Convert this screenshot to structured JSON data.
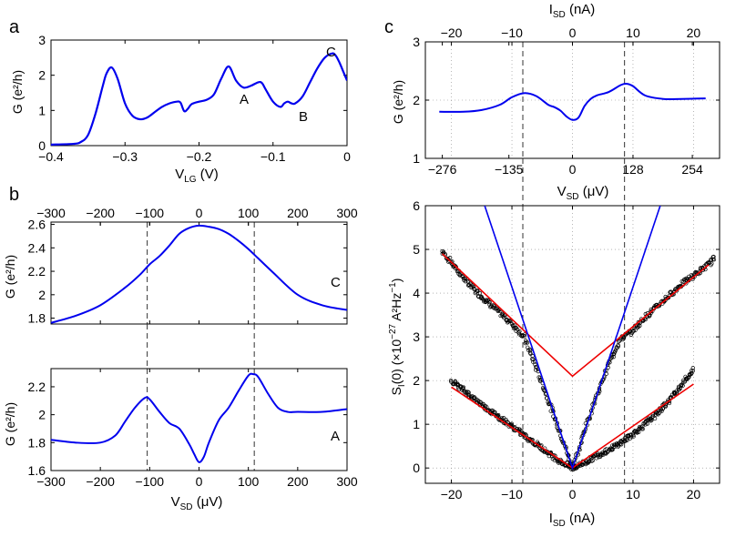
{
  "figure": {
    "panel_labels": {
      "a": "a",
      "b": "b",
      "c": "c"
    },
    "annotations_a": {
      "A": "A",
      "B": "B",
      "C": "C"
    },
    "annotation_b_top": "C",
    "annotation_b_bottom": "A",
    "ylabel_G": "G (e²/h)",
    "xlabel_VLG": "V",
    "xlabel_VLG_sub": "LG",
    "xlabel_VLG_unit": " (V)",
    "xlabel_VSD": "V",
    "xlabel_VSD_sub": "SD",
    "xlabel_VSD_unit": " (μV)",
    "xlabel_ISD": "I",
    "xlabel_ISD_sub": "SD",
    "xlabel_ISD_unit": " (nA)",
    "ylabel_S": "S",
    "ylabel_S_sub": "I",
    "ylabel_S_rest": "(0) (×10",
    "ylabel_S_exp": "−27",
    "ylabel_S_unit": " A²Hz",
    "ylabel_S_unitexp": "−1",
    "ylabel_S_close": ")",
    "colors": {
      "curve": "#0000ee",
      "fit": "#ee0000",
      "data": "#000000"
    }
  },
  "chart_data": [
    {
      "id": "a",
      "type": "line",
      "xlim": [
        -0.4,
        0
      ],
      "ylim": [
        0,
        3
      ],
      "xticks": [
        -0.4,
        -0.3,
        -0.2,
        -0.1,
        0
      ],
      "xtick_labels": [
        "−0.4",
        "−0.3",
        "−0.2",
        "−0.1",
        "0"
      ],
      "yticks": [
        0,
        1,
        2,
        3
      ],
      "ytick_labels": [
        "0",
        "1",
        "2",
        "3"
      ],
      "series": [
        {
          "x": [
            -0.4,
            -0.37,
            -0.36,
            -0.35,
            -0.34,
            -0.33,
            -0.325,
            -0.318,
            -0.31,
            -0.3,
            -0.29,
            -0.28,
            -0.27,
            -0.26,
            -0.25,
            -0.24,
            -0.23,
            -0.225,
            -0.22,
            -0.215,
            -0.21,
            -0.2,
            -0.19,
            -0.18,
            -0.17,
            -0.16,
            -0.15,
            -0.14,
            -0.13,
            -0.12,
            -0.115,
            -0.11,
            -0.1,
            -0.09,
            -0.085,
            -0.08,
            -0.075,
            -0.07,
            -0.06,
            -0.05,
            -0.04,
            -0.03,
            -0.02,
            -0.015,
            -0.01,
            -0.005,
            0
          ],
          "y": [
            0.03,
            0.05,
            0.1,
            0.3,
            0.9,
            1.7,
            2.05,
            2.22,
            1.9,
            1.2,
            0.85,
            0.75,
            0.8,
            0.95,
            1.1,
            1.2,
            1.25,
            1.22,
            0.98,
            1.05,
            1.18,
            1.25,
            1.3,
            1.45,
            1.9,
            2.25,
            1.85,
            1.65,
            1.7,
            1.8,
            1.78,
            1.6,
            1.25,
            1.1,
            1.2,
            1.25,
            1.2,
            1.2,
            1.4,
            1.8,
            2.2,
            2.5,
            2.62,
            2.55,
            2.35,
            2.1,
            1.85
          ]
        }
      ]
    },
    {
      "id": "b-top",
      "type": "line",
      "xlim": [
        -300,
        300
      ],
      "ylim": [
        1.75,
        2.62
      ],
      "xticks": [
        -300,
        -200,
        -100,
        0,
        100,
        200,
        300
      ],
      "xtick_labels": [
        "−300",
        "−200",
        "−100",
        "0",
        "100",
        "200",
        "300"
      ],
      "yticks": [
        1.8,
        2.0,
        2.2,
        2.4,
        2.6
      ],
      "ytick_labels": [
        "1.8",
        "2",
        "2.2",
        "2.4",
        "2.6"
      ],
      "vlines": [
        -105,
        112
      ],
      "series": [
        {
          "x": [
            -300,
            -250,
            -200,
            -150,
            -120,
            -100,
            -80,
            -60,
            -40,
            -20,
            0,
            20,
            40,
            60,
            80,
            100,
            120,
            150,
            200,
            250,
            300
          ],
          "y": [
            1.76,
            1.82,
            1.91,
            2.06,
            2.17,
            2.26,
            2.33,
            2.42,
            2.52,
            2.57,
            2.59,
            2.58,
            2.56,
            2.52,
            2.46,
            2.39,
            2.31,
            2.19,
            2.0,
            1.91,
            1.87
          ]
        }
      ]
    },
    {
      "id": "b-bottom",
      "type": "line",
      "xlim": [
        -300,
        300
      ],
      "ylim": [
        1.6,
        2.33
      ],
      "xticks": [
        -300,
        -200,
        -100,
        0,
        100,
        200,
        300
      ],
      "xtick_labels": [
        "−300",
        "−200",
        "−100",
        "0",
        "100",
        "200",
        "300"
      ],
      "yticks": [
        1.6,
        1.8,
        2.0,
        2.2
      ],
      "ytick_labels": [
        "1.6",
        "1.8",
        "2",
        "2.2"
      ],
      "vlines": [
        -105,
        112
      ],
      "series": [
        {
          "x": [
            -300,
            -250,
            -200,
            -170,
            -150,
            -130,
            -110,
            -100,
            -80,
            -60,
            -40,
            -20,
            -10,
            0,
            10,
            20,
            40,
            60,
            80,
            100,
            110,
            120,
            140,
            160,
            180,
            200,
            250,
            300
          ],
          "y": [
            1.82,
            1.8,
            1.8,
            1.85,
            1.95,
            2.05,
            2.12,
            2.11,
            2.02,
            1.94,
            1.9,
            1.79,
            1.72,
            1.66,
            1.7,
            1.8,
            1.96,
            2.05,
            2.17,
            2.28,
            2.29,
            2.27,
            2.15,
            2.05,
            2.02,
            2.02,
            2.02,
            2.04
          ]
        }
      ]
    },
    {
      "id": "c-top",
      "type": "line",
      "xlim": [
        -24.3,
        24.3
      ],
      "ylim": [
        1,
        3
      ],
      "xticks_top": [
        -20,
        -10,
        0,
        10,
        20
      ],
      "xtick_labels_top": [
        "−20",
        "−10",
        "0",
        "10",
        "20"
      ],
      "xticks_bottom": [
        -21.5,
        -10.5,
        0,
        10,
        19.8
      ],
      "xtick_labels_bottom": [
        "−276",
        "−135",
        "0",
        "128",
        "254"
      ],
      "yticks": [
        1,
        2,
        3
      ],
      "ytick_labels": [
        "1",
        "2",
        "3"
      ],
      "vlines": [
        -8.2,
        8.6
      ],
      "series": [
        {
          "x": [
            -22,
            -18,
            -15,
            -12,
            -10,
            -8,
            -6,
            -4,
            -3,
            -2,
            -1,
            0,
            1,
            2,
            3,
            4,
            6,
            8,
            9,
            10,
            12,
            15,
            18,
            22
          ],
          "y": [
            1.8,
            1.8,
            1.83,
            1.92,
            2.05,
            2.12,
            2.07,
            1.92,
            1.88,
            1.82,
            1.72,
            1.66,
            1.7,
            1.9,
            2.02,
            2.08,
            2.14,
            2.26,
            2.28,
            2.24,
            2.08,
            2.02,
            2.02,
            2.03
          ]
        }
      ]
    },
    {
      "id": "c-bottom",
      "type": "scatter",
      "xlim": [
        -24.3,
        24.3
      ],
      "ylim": [
        -0.35,
        6
      ],
      "xticks": [
        -20,
        -10,
        0,
        10,
        20
      ],
      "xtick_labels": [
        "−20",
        "−10",
        "0",
        "10",
        "20"
      ],
      "yticks": [
        0,
        1,
        2,
        3,
        4,
        5,
        6
      ],
      "ytick_labels": [
        "0",
        "1",
        "2",
        "3",
        "4",
        "5",
        "6"
      ],
      "vlines": [
        -8.2,
        8.6
      ],
      "series": [
        {
          "kind": "points",
          "x": [
            -21.5,
            -20,
            -18,
            -16,
            -14,
            -12,
            -10,
            -9,
            -8,
            -6,
            -4,
            -2,
            -1,
            0,
            1,
            2,
            4,
            6,
            8,
            9,
            10,
            12,
            14,
            16,
            18,
            20,
            22,
            23.5
          ],
          "y": [
            4.95,
            4.7,
            4.35,
            4.05,
            3.8,
            3.55,
            3.3,
            3.15,
            3.0,
            2.3,
            1.55,
            0.8,
            0.4,
            0.0,
            0.4,
            0.85,
            1.65,
            2.4,
            2.95,
            3.05,
            3.15,
            3.45,
            3.7,
            3.95,
            4.2,
            4.4,
            4.6,
            4.8
          ]
        },
        {
          "kind": "points",
          "x": [
            -20,
            -18,
            -16,
            -14,
            -12,
            -10,
            -8,
            -6,
            -4,
            -2,
            0,
            2,
            4,
            6,
            8,
            10,
            12,
            14,
            16,
            18,
            20
          ],
          "y": [
            2.0,
            1.78,
            1.55,
            1.35,
            1.15,
            0.95,
            0.75,
            0.55,
            0.35,
            0.15,
            0.0,
            0.12,
            0.28,
            0.42,
            0.58,
            0.78,
            1.0,
            1.25,
            1.55,
            1.9,
            2.25
          ]
        },
        {
          "kind": "fit",
          "color": "red",
          "x": [
            -21.5,
            0,
            22.5
          ],
          "y": [
            4.9,
            2.1,
            4.65
          ]
        },
        {
          "kind": "fit",
          "color": "red",
          "x": [
            -20,
            0,
            20
          ],
          "y": [
            1.85,
            0.0,
            1.92
          ]
        },
        {
          "kind": "fit",
          "color": "blue",
          "x": [
            -14.5,
            0,
            14.5
          ],
          "y": [
            6,
            0,
            6
          ]
        }
      ]
    }
  ]
}
